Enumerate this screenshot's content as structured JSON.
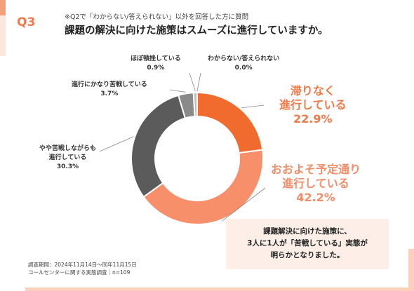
{
  "header": {
    "q_label": "Q3",
    "note": "※Q2で「わからない/答えられない」以外を回答した方に質問",
    "title": "課題の解決に向けた施策はスムーズに進行していますか。"
  },
  "chart_data": {
    "type": "pie",
    "donut": true,
    "categories": [
      "滞りなく進行している",
      "おおよそ予定通り進行している",
      "やや苦戦しながらも進行している",
      "進行にかなり苦戦している",
      "ほぼ頓挫している",
      "わからない/答えられない"
    ],
    "values": [
      22.9,
      42.2,
      30.3,
      3.7,
      0.9,
      0.0
    ],
    "colors": [
      "#f26b2e",
      "#f7906a",
      "#5b5b5b",
      "#8a8a8a",
      "#bdbdbd",
      "#dddddd"
    ],
    "labels": [
      {
        "line1": "滞りなく",
        "line2": "進行している",
        "pct": "22.9%"
      },
      {
        "line1": "おおよそ予定通り",
        "line2": "進行している",
        "pct": "42.2%"
      },
      {
        "line1": "やや苦戦しながらも",
        "line2": "進行している",
        "pct": "30.3%"
      },
      {
        "line1": "進行にかなり苦戦している",
        "pct": "3.7%"
      },
      {
        "line1": "ほぼ頓挫している",
        "pct": "0.9%"
      },
      {
        "line1": "わからない/答えられない",
        "pct": "0.0%"
      }
    ]
  },
  "callout": {
    "line1": "課題解決に向けた施策に、",
    "line2": "3人に1人が「苦戦している」実態が",
    "line3": "明らかとなりました。"
  },
  "footer": {
    "period": "調査期間：2024年11月14日～同年11月15日",
    "survey": "コールセンターに関する実態調査｜n=109"
  }
}
